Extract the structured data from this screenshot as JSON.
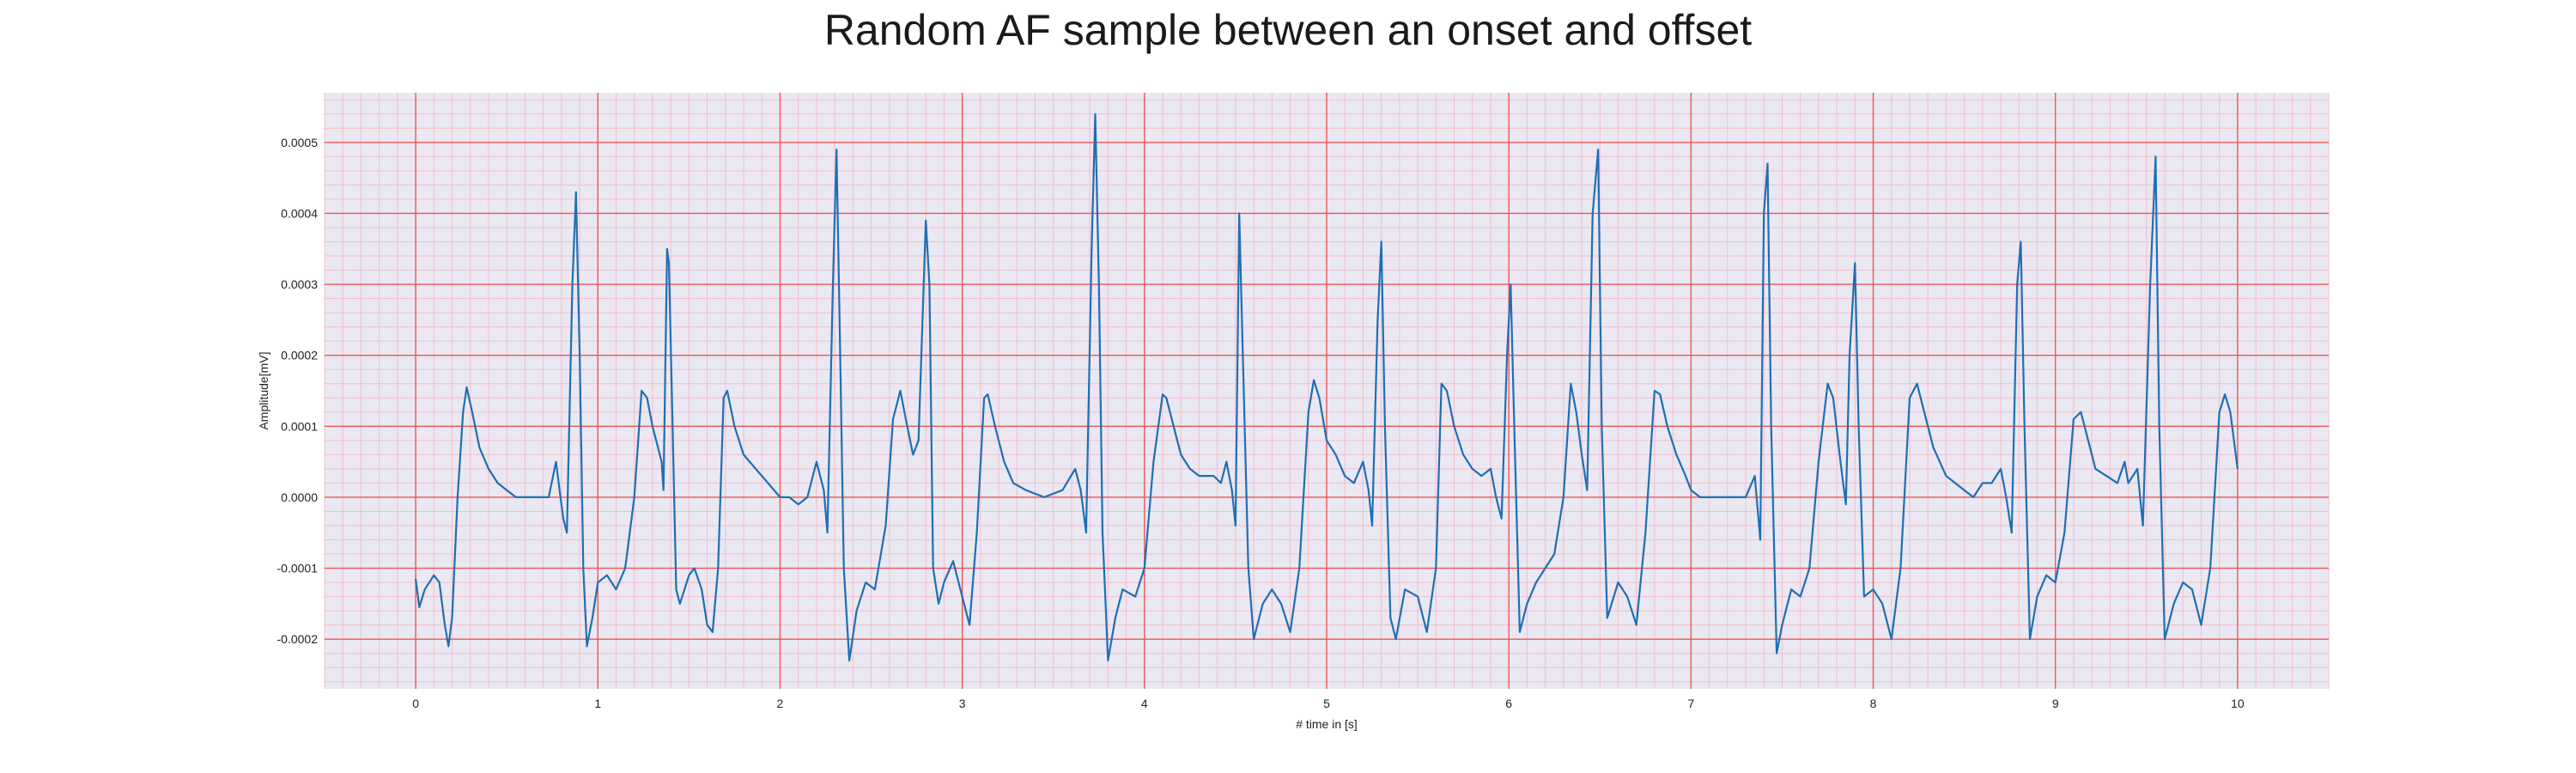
{
  "chart_data": {
    "type": "line",
    "title": "Random AF sample between an onset and offset",
    "xlabel": "# time in [s]",
    "ylabel": "Amplitude[mV]",
    "xlim": [
      -0.5,
      10.5
    ],
    "ylim": [
      -0.00027,
      0.00057
    ],
    "x_ticks": [
      0,
      1,
      2,
      3,
      4,
      5,
      6,
      7,
      8,
      9,
      10
    ],
    "y_ticks": [
      -0.0002,
      -0.0001,
      0.0,
      0.0001,
      0.0002,
      0.0003,
      0.0004,
      0.0005
    ],
    "y_tick_labels": [
      "-0.0002",
      "-0.0001",
      "0.0000",
      "0.0001",
      "0.0002",
      "0.0003",
      "0.0004",
      "0.0005"
    ],
    "grid": true,
    "series": [
      {
        "color": "#1f6fb2",
        "points": [
          [
            0.0,
            -0.000115
          ],
          [
            0.02,
            -0.000155
          ],
          [
            0.05,
            -0.00013
          ],
          [
            0.1,
            -0.00011
          ],
          [
            0.13,
            -0.00012
          ],
          [
            0.16,
            -0.00018
          ],
          [
            0.18,
            -0.00021
          ],
          [
            0.2,
            -0.00017
          ],
          [
            0.23,
            0.0
          ],
          [
            0.26,
            0.00012
          ],
          [
            0.28,
            0.000155
          ],
          [
            0.31,
            0.00012
          ],
          [
            0.35,
            7e-05
          ],
          [
            0.4,
            4e-05
          ],
          [
            0.45,
            2e-05
          ],
          [
            0.5,
            1e-05
          ],
          [
            0.55,
            0.0
          ],
          [
            0.65,
            0.0
          ],
          [
            0.7,
            0.0
          ],
          [
            0.73,
            0.0
          ],
          [
            0.77,
            5e-05
          ],
          [
            0.79,
            1e-05
          ],
          [
            0.81,
            -3e-05
          ],
          [
            0.83,
            -5e-05
          ],
          [
            0.86,
            0.0003
          ],
          [
            0.88,
            0.00043
          ],
          [
            0.9,
            0.0002
          ],
          [
            0.92,
            -0.0001
          ],
          [
            0.94,
            -0.00021
          ],
          [
            0.97,
            -0.00017
          ],
          [
            1.0,
            -0.00012
          ],
          [
            1.05,
            -0.00011
          ],
          [
            1.1,
            -0.00013
          ],
          [
            1.15,
            -0.0001
          ],
          [
            1.2,
            0.0
          ],
          [
            1.24,
            0.00015
          ],
          [
            1.27,
            0.00014
          ],
          [
            1.3,
            0.0001
          ],
          [
            1.33,
            7e-05
          ],
          [
            1.35,
            5e-05
          ],
          [
            1.36,
            1e-05
          ],
          [
            1.38,
            0.00035
          ],
          [
            1.39,
            0.00033
          ],
          [
            1.41,
            0.0001
          ],
          [
            1.43,
            -0.00013
          ],
          [
            1.45,
            -0.00015
          ],
          [
            1.5,
            -0.00011
          ],
          [
            1.53,
            -0.0001
          ],
          [
            1.57,
            -0.00013
          ],
          [
            1.6,
            -0.00018
          ],
          [
            1.63,
            -0.00019
          ],
          [
            1.66,
            -0.0001
          ],
          [
            1.69,
            0.00014
          ],
          [
            1.71,
            0.00015
          ],
          [
            1.75,
            0.0001
          ],
          [
            1.8,
            6e-05
          ],
          [
            1.9,
            3e-05
          ],
          [
            2.0,
            0.0
          ],
          [
            2.05,
            0.0
          ],
          [
            2.1,
            -1e-05
          ],
          [
            2.15,
            0.0
          ],
          [
            2.2,
            5e-05
          ],
          [
            2.24,
            1e-05
          ],
          [
            2.26,
            -5e-05
          ],
          [
            2.29,
            0.0003
          ],
          [
            2.31,
            0.00049
          ],
          [
            2.33,
            0.0002
          ],
          [
            2.35,
            -0.0001
          ],
          [
            2.38,
            -0.00023
          ],
          [
            2.42,
            -0.00016
          ],
          [
            2.47,
            -0.00012
          ],
          [
            2.52,
            -0.00013
          ],
          [
            2.58,
            -4e-05
          ],
          [
            2.62,
            0.00011
          ],
          [
            2.66,
            0.00015
          ],
          [
            2.69,
            0.00011
          ],
          [
            2.73,
            6e-05
          ],
          [
            2.76,
            8e-05
          ],
          [
            2.8,
            0.00039
          ],
          [
            2.82,
            0.0003
          ],
          [
            2.84,
            -0.0001
          ],
          [
            2.87,
            -0.00015
          ],
          [
            2.9,
            -0.00012
          ],
          [
            2.95,
            -9e-05
          ],
          [
            3.0,
            -0.00014
          ],
          [
            3.04,
            -0.00018
          ],
          [
            3.08,
            -5e-05
          ],
          [
            3.12,
            0.00014
          ],
          [
            3.14,
            0.000145
          ],
          [
            3.18,
            0.0001
          ],
          [
            3.23,
            5e-05
          ],
          [
            3.28,
            2e-05
          ],
          [
            3.35,
            1e-05
          ],
          [
            3.45,
            0.0
          ],
          [
            3.55,
            1e-05
          ],
          [
            3.62,
            4e-05
          ],
          [
            3.65,
            1e-05
          ],
          [
            3.68,
            -5e-05
          ],
          [
            3.71,
            0.00035
          ],
          [
            3.73,
            0.00054
          ],
          [
            3.75,
            0.0003
          ],
          [
            3.77,
            -5e-05
          ],
          [
            3.8,
            -0.00023
          ],
          [
            3.84,
            -0.00017
          ],
          [
            3.88,
            -0.00013
          ],
          [
            3.95,
            -0.00014
          ],
          [
            4.0,
            -0.0001
          ],
          [
            4.05,
            5e-05
          ],
          [
            4.1,
            0.000145
          ],
          [
            4.12,
            0.00014
          ],
          [
            4.16,
            0.0001
          ],
          [
            4.2,
            6e-05
          ],
          [
            4.25,
            4e-05
          ],
          [
            4.3,
            3e-05
          ],
          [
            4.38,
            3e-05
          ],
          [
            4.42,
            2e-05
          ],
          [
            4.45,
            5e-05
          ],
          [
            4.48,
            1e-05
          ],
          [
            4.5,
            -4e-05
          ],
          [
            4.52,
            0.0004
          ],
          [
            4.54,
            0.0002
          ],
          [
            4.57,
            -0.0001
          ],
          [
            4.6,
            -0.0002
          ],
          [
            4.65,
            -0.00015
          ],
          [
            4.7,
            -0.00013
          ],
          [
            4.75,
            -0.00015
          ],
          [
            4.8,
            -0.00019
          ],
          [
            4.85,
            -0.0001
          ],
          [
            4.9,
            0.00012
          ],
          [
            4.93,
            0.000165
          ],
          [
            4.96,
            0.00014
          ],
          [
            5.0,
            8e-05
          ],
          [
            5.05,
            6e-05
          ],
          [
            5.1,
            3e-05
          ],
          [
            5.15,
            2e-05
          ],
          [
            5.2,
            5e-05
          ],
          [
            5.23,
            1e-05
          ],
          [
            5.25,
            -4e-05
          ],
          [
            5.28,
            0.00025
          ],
          [
            5.3,
            0.00036
          ],
          [
            5.32,
            0.0001
          ],
          [
            5.35,
            -0.00017
          ],
          [
            5.38,
            -0.0002
          ],
          [
            5.43,
            -0.00013
          ],
          [
            5.5,
            -0.00014
          ],
          [
            5.55,
            -0.00019
          ],
          [
            5.6,
            -0.0001
          ],
          [
            5.63,
            0.00016
          ],
          [
            5.66,
            0.00015
          ],
          [
            5.7,
            0.0001
          ],
          [
            5.75,
            6e-05
          ],
          [
            5.8,
            4e-05
          ],
          [
            5.85,
            3e-05
          ],
          [
            5.9,
            4e-05
          ],
          [
            5.93,
            0.0
          ],
          [
            5.96,
            -3e-05
          ],
          [
            5.99,
            0.0002
          ],
          [
            6.01,
            0.0003
          ],
          [
            6.03,
            0.0001
          ],
          [
            6.06,
            -0.00019
          ],
          [
            6.1,
            -0.00015
          ],
          [
            6.15,
            -0.00012
          ],
          [
            6.2,
            -0.0001
          ],
          [
            6.25,
            -8e-05
          ],
          [
            6.3,
            0.0
          ],
          [
            6.34,
            0.00016
          ],
          [
            6.37,
            0.00012
          ],
          [
            6.4,
            6e-05
          ],
          [
            6.43,
            1e-05
          ],
          [
            6.46,
            0.0004
          ],
          [
            6.49,
            0.00049
          ],
          [
            6.51,
            0.0001
          ],
          [
            6.54,
            -0.00017
          ],
          [
            6.6,
            -0.00012
          ],
          [
            6.65,
            -0.00014
          ],
          [
            6.7,
            -0.00018
          ],
          [
            6.75,
            -5e-05
          ],
          [
            6.8,
            0.00015
          ],
          [
            6.83,
            0.000145
          ],
          [
            6.87,
            0.0001
          ],
          [
            6.92,
            6e-05
          ],
          [
            6.97,
            3e-05
          ],
          [
            7.0,
            1e-05
          ],
          [
            7.05,
            0.0
          ],
          [
            7.1,
            0.0
          ],
          [
            7.15,
            0.0
          ],
          [
            7.2,
            0.0
          ],
          [
            7.3,
            0.0
          ],
          [
            7.35,
            3e-05
          ],
          [
            7.38,
            -6e-05
          ],
          [
            7.4,
            0.0004
          ],
          [
            7.42,
            0.00047
          ],
          [
            7.44,
            0.0001
          ],
          [
            7.47,
            -0.00022
          ],
          [
            7.5,
            -0.00018
          ],
          [
            7.55,
            -0.00013
          ],
          [
            7.6,
            -0.00014
          ],
          [
            7.65,
            -0.0001
          ],
          [
            7.7,
            5e-05
          ],
          [
            7.75,
            0.00016
          ],
          [
            7.78,
            0.00014
          ],
          [
            7.82,
            5e-05
          ],
          [
            7.85,
            -1e-05
          ],
          [
            7.87,
            0.0002
          ],
          [
            7.9,
            0.00033
          ],
          [
            7.92,
            0.0001
          ],
          [
            7.95,
            -0.00014
          ],
          [
            8.0,
            -0.00013
          ],
          [
            8.05,
            -0.00015
          ],
          [
            8.1,
            -0.0002
          ],
          [
            8.15,
            -0.0001
          ],
          [
            8.2,
            0.00014
          ],
          [
            8.24,
            0.00016
          ],
          [
            8.28,
            0.00012
          ],
          [
            8.33,
            7e-05
          ],
          [
            8.4,
            3e-05
          ],
          [
            8.45,
            2e-05
          ],
          [
            8.5,
            1e-05
          ],
          [
            8.55,
            0.0
          ],
          [
            8.6,
            2e-05
          ],
          [
            8.65,
            2e-05
          ],
          [
            8.7,
            4e-05
          ],
          [
            8.73,
            0.0
          ],
          [
            8.76,
            -5e-05
          ],
          [
            8.79,
            0.0003
          ],
          [
            8.81,
            0.00036
          ],
          [
            8.83,
            0.0001
          ],
          [
            8.86,
            -0.0002
          ],
          [
            8.9,
            -0.00014
          ],
          [
            8.95,
            -0.00011
          ],
          [
            9.0,
            -0.00012
          ],
          [
            9.05,
            -5e-05
          ],
          [
            9.1,
            0.00011
          ],
          [
            9.14,
            0.00012
          ],
          [
            9.18,
            8e-05
          ],
          [
            9.22,
            4e-05
          ],
          [
            9.28,
            3e-05
          ],
          [
            9.34,
            2e-05
          ],
          [
            9.38,
            5e-05
          ],
          [
            9.4,
            2e-05
          ],
          [
            9.45,
            4e-05
          ],
          [
            9.48,
            -4e-05
          ],
          [
            9.52,
            0.0003
          ],
          [
            9.55,
            0.00048
          ],
          [
            9.57,
            0.0001
          ],
          [
            9.6,
            -0.0002
          ],
          [
            9.65,
            -0.00015
          ],
          [
            9.7,
            -0.00012
          ],
          [
            9.75,
            -0.00013
          ],
          [
            9.8,
            -0.00018
          ],
          [
            9.85,
            -0.0001
          ],
          [
            9.9,
            0.00012
          ],
          [
            9.93,
            0.000145
          ],
          [
            9.96,
            0.00012
          ],
          [
            10.0,
            4e-05
          ]
        ]
      }
    ]
  }
}
